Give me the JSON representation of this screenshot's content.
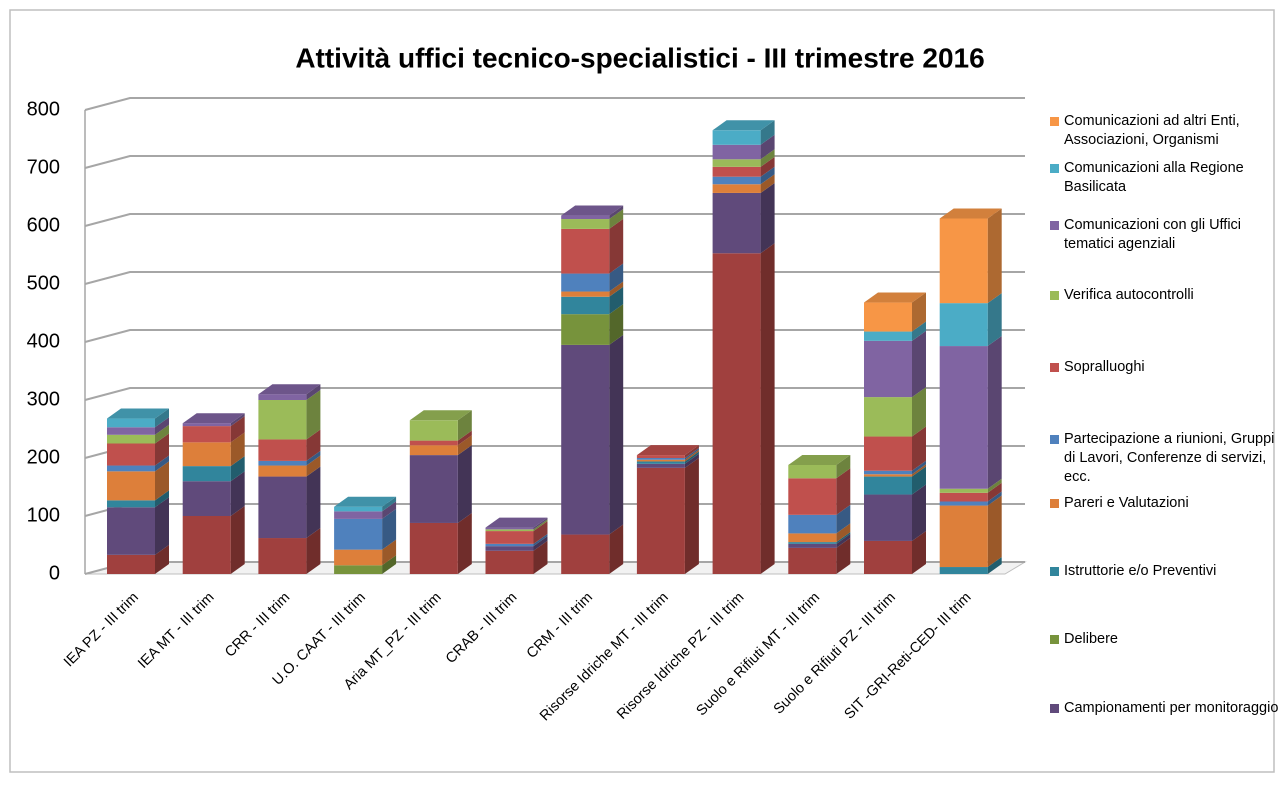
{
  "chart_data": {
    "type": "bar3d-stacked",
    "title": "Attività uffici tecnico-specialistici - III trimestre 2016",
    "categories": [
      "IEA PZ - III trim",
      "IEA MT - III trim",
      "CRR - III trim",
      "U.O. CAAT - III trim",
      "Aria MT_PZ - III trim",
      "CRAB - III trim",
      "CRM - III trim",
      "Risorse Idriche MT - III trim",
      "Risorse Idriche PZ - III trim",
      "Suolo e Rifiuti MT - III trim",
      "Suolo e Rifiuti PZ - III trim",
      "SIT -GRI-Reti-CED- III trim"
    ],
    "ylim": [
      0,
      800
    ],
    "yticks": [
      0,
      100,
      200,
      300,
      400,
      500,
      600,
      700,
      800
    ],
    "grid": true,
    "series": [
      {
        "color": "#a0403e",
        "values": [
          33,
          100,
          62,
          0,
          88,
          40,
          68,
          183,
          553,
          45,
          57,
          0
        ]
      },
      {
        "name": "Campionamenti per monitoraggio",
        "color": "#604a7b",
        "values": [
          82,
          60,
          106,
          0,
          117,
          8,
          327,
          7,
          104,
          7,
          80,
          0
        ]
      },
      {
        "name": "Delibere",
        "color": "#77933c",
        "values": [
          0,
          0,
          0,
          15,
          0,
          0,
          53,
          0,
          0,
          0,
          0,
          0
        ]
      },
      {
        "name": "Istruttorie e/o Preventivi",
        "color": "#31859c",
        "values": [
          12,
          26,
          0,
          0,
          0,
          0,
          30,
          4,
          0,
          3,
          31,
          12
        ]
      },
      {
        "name": "Pareri e Valutazioni",
        "color": "#dd7f3a",
        "values": [
          50,
          41,
          19,
          27,
          17,
          0,
          9,
          3,
          15,
          15,
          4,
          106
        ]
      },
      {
        "name": "Partecipazione a riunioni, Gruppi di Lavori, Conferenze di servizi, ecc.",
        "color": "#4f81bd",
        "values": [
          10,
          0,
          8,
          53,
          0,
          4,
          31,
          3,
          13,
          32,
          6,
          7
        ]
      },
      {
        "name": "Sopralluoghi",
        "color": "#c0504d",
        "values": [
          38,
          28,
          37,
          0,
          8,
          22,
          77,
          5,
          17,
          63,
          59,
          15
        ]
      },
      {
        "name": "Verifica autocontrolli",
        "color": "#9bbb59",
        "values": [
          15,
          0,
          68,
          0,
          35,
          3,
          17,
          0,
          13,
          23,
          68,
          7
        ]
      },
      {
        "name": "Comunicazioni con gli Uffici tematici agenziali",
        "color": "#8064a2",
        "values": [
          13,
          5,
          10,
          13,
          0,
          3,
          6,
          0,
          25,
          0,
          97,
          246
        ]
      },
      {
        "name": "Comunicazioni alla Regione Basilicata",
        "color": "#4bacc6",
        "values": [
          15,
          0,
          0,
          8,
          0,
          0,
          0,
          0,
          25,
          0,
          16,
          74
        ]
      },
      {
        "name": "Comunicazioni ad altri Enti, Associazioni, Organismi",
        "color": "#f79646",
        "values": [
          0,
          0,
          0,
          0,
          0,
          0,
          0,
          0,
          0,
          0,
          50,
          146
        ]
      }
    ]
  }
}
